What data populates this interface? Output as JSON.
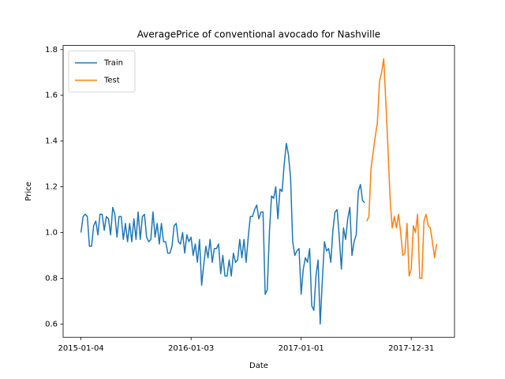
{
  "chart_data": {
    "type": "line",
    "title": "AveragePrice of conventional avocado for Nashville",
    "xlabel": "Date",
    "ylabel": "Price",
    "xlim": [
      "2014-11-06",
      "2018-05-23"
    ],
    "xticks": [
      "2015-01-04",
      "2016-01-03",
      "2017-01-01",
      "2017-12-31"
    ],
    "ylim": [
      0.542,
      1.818
    ],
    "yticks": [
      {
        "value": 0.6,
        "label": "0.6"
      },
      {
        "value": 0.8,
        "label": "0.8"
      },
      {
        "value": 1.0,
        "label": "1.0"
      },
      {
        "value": 1.2,
        "label": "1.2"
      },
      {
        "value": 1.4,
        "label": "1.4"
      },
      {
        "value": 1.6,
        "label": "1.6"
      },
      {
        "value": 1.8,
        "label": "1.8"
      }
    ],
    "legend": "upper left",
    "series": [
      {
        "name": "Train",
        "color": "#1f77b4",
        "x": [
          "2015-01-04",
          "2015-01-11",
          "2015-01-18",
          "2015-01-25",
          "2015-02-01",
          "2015-02-08",
          "2015-02-15",
          "2015-02-22",
          "2015-03-01",
          "2015-03-08",
          "2015-03-15",
          "2015-03-22",
          "2015-03-29",
          "2015-04-05",
          "2015-04-12",
          "2015-04-19",
          "2015-04-26",
          "2015-05-03",
          "2015-05-10",
          "2015-05-17",
          "2015-05-24",
          "2015-05-31",
          "2015-06-07",
          "2015-06-14",
          "2015-06-21",
          "2015-06-28",
          "2015-07-05",
          "2015-07-12",
          "2015-07-19",
          "2015-07-26",
          "2015-08-02",
          "2015-08-09",
          "2015-08-16",
          "2015-08-23",
          "2015-08-30",
          "2015-09-06",
          "2015-09-13",
          "2015-09-20",
          "2015-09-27",
          "2015-10-04",
          "2015-10-11",
          "2015-10-18",
          "2015-10-25",
          "2015-11-01",
          "2015-11-08",
          "2015-11-15",
          "2015-11-22",
          "2015-11-29",
          "2015-12-06",
          "2015-12-13",
          "2015-12-20",
          "2015-12-27",
          "2016-01-03",
          "2016-01-10",
          "2016-01-17",
          "2016-01-24",
          "2016-01-31",
          "2016-02-07",
          "2016-02-14",
          "2016-02-21",
          "2016-02-28",
          "2016-03-06",
          "2016-03-13",
          "2016-03-20",
          "2016-03-27",
          "2016-04-03",
          "2016-04-10",
          "2016-04-17",
          "2016-04-24",
          "2016-05-01",
          "2016-05-08",
          "2016-05-15",
          "2016-05-22",
          "2016-05-29",
          "2016-06-05",
          "2016-06-12",
          "2016-06-19",
          "2016-06-26",
          "2016-07-03",
          "2016-07-10",
          "2016-07-17",
          "2016-07-24",
          "2016-07-31",
          "2016-08-07",
          "2016-08-14",
          "2016-08-21",
          "2016-08-28",
          "2016-09-04",
          "2016-09-11",
          "2016-09-18",
          "2016-09-25",
          "2016-10-02",
          "2016-10-09",
          "2016-10-16",
          "2016-10-23",
          "2016-10-30",
          "2016-11-06",
          "2016-11-13",
          "2016-11-20",
          "2016-11-27",
          "2016-12-04",
          "2016-12-11",
          "2016-12-18",
          "2016-12-25",
          "2017-01-01",
          "2017-01-08",
          "2017-01-15",
          "2017-01-22",
          "2017-01-29",
          "2017-02-05",
          "2017-02-12",
          "2017-02-19",
          "2017-02-26",
          "2017-03-05",
          "2017-03-12",
          "2017-03-19",
          "2017-03-26",
          "2017-04-02",
          "2017-04-09",
          "2017-04-16",
          "2017-04-23",
          "2017-04-30",
          "2017-05-07",
          "2017-05-14",
          "2017-05-21",
          "2017-05-28",
          "2017-06-04",
          "2017-06-11",
          "2017-06-18",
          "2017-06-25",
          "2017-07-02",
          "2017-07-09",
          "2017-07-16",
          "2017-07-23",
          "2017-07-30"
        ],
        "values": [
          1.0,
          1.07,
          1.08,
          1.07,
          0.94,
          0.94,
          1.03,
          1.05,
          0.99,
          1.08,
          1.08,
          1.01,
          1.07,
          1.06,
          0.99,
          1.11,
          1.08,
          0.98,
          1.07,
          1.07,
          0.97,
          1.04,
          0.96,
          1.04,
          0.96,
          1.06,
          0.97,
          1.09,
          0.97,
          1.07,
          1.08,
          0.98,
          0.96,
          0.97,
          1.09,
          0.98,
          1.04,
          0.95,
          1.04,
          0.96,
          0.96,
          0.91,
          0.91,
          0.94,
          1.03,
          1.04,
          0.96,
          0.95,
          1.0,
          0.91,
          0.99,
          0.96,
          0.98,
          0.9,
          0.95,
          0.87,
          0.97,
          0.77,
          0.86,
          0.94,
          0.89,
          0.97,
          0.87,
          0.93,
          0.93,
          0.95,
          0.82,
          0.9,
          0.81,
          0.81,
          0.88,
          0.81,
          0.91,
          0.87,
          0.88,
          0.97,
          0.89,
          0.97,
          0.87,
          0.98,
          1.07,
          1.07,
          1.1,
          1.12,
          1.06,
          1.09,
          1.09,
          0.73,
          0.75,
          1.0,
          1.16,
          1.15,
          1.2,
          1.06,
          1.19,
          1.18,
          1.3,
          1.39,
          1.34,
          1.24,
          0.96,
          0.9,
          0.92,
          0.93,
          0.73,
          0.84,
          0.89,
          0.87,
          0.93,
          0.68,
          0.66,
          0.81,
          0.88,
          0.6,
          0.79,
          0.96,
          0.92,
          0.93,
          0.87,
          1.01,
          1.09,
          1.1,
          0.98,
          0.84,
          1.02,
          0.97,
          1.06,
          1.11,
          0.9,
          0.96,
          0.99,
          1.18,
          1.21,
          1.14,
          1.13
        ]
      },
      {
        "name": "Test",
        "color": "#ff7f0e",
        "x": [
          "2017-08-06",
          "2017-08-13",
          "2017-08-20",
          "2017-08-27",
          "2017-09-03",
          "2017-09-10",
          "2017-09-17",
          "2017-09-24",
          "2017-10-01",
          "2017-10-08",
          "2017-10-15",
          "2017-10-22",
          "2017-10-29",
          "2017-11-05",
          "2017-11-12",
          "2017-11-19",
          "2017-11-26",
          "2017-12-03",
          "2017-12-10",
          "2017-12-17",
          "2017-12-24",
          "2017-12-31",
          "2018-01-07",
          "2018-01-14",
          "2018-01-21",
          "2018-01-28",
          "2018-02-04",
          "2018-02-11",
          "2018-02-18",
          "2018-02-25",
          "2018-03-04",
          "2018-03-11",
          "2018-03-18",
          "2018-03-25"
        ],
        "values": [
          1.05,
          1.07,
          1.28,
          1.35,
          1.42,
          1.48,
          1.66,
          1.7,
          1.76,
          1.57,
          1.37,
          1.15,
          1.02,
          1.07,
          1.02,
          1.08,
          1.0,
          0.9,
          0.91,
          1.04,
          0.81,
          0.84,
          1.03,
          1.0,
          1.08,
          0.8,
          0.8,
          1.05,
          1.08,
          1.03,
          1.02,
          0.96,
          0.89,
          0.95
        ]
      }
    ]
  }
}
